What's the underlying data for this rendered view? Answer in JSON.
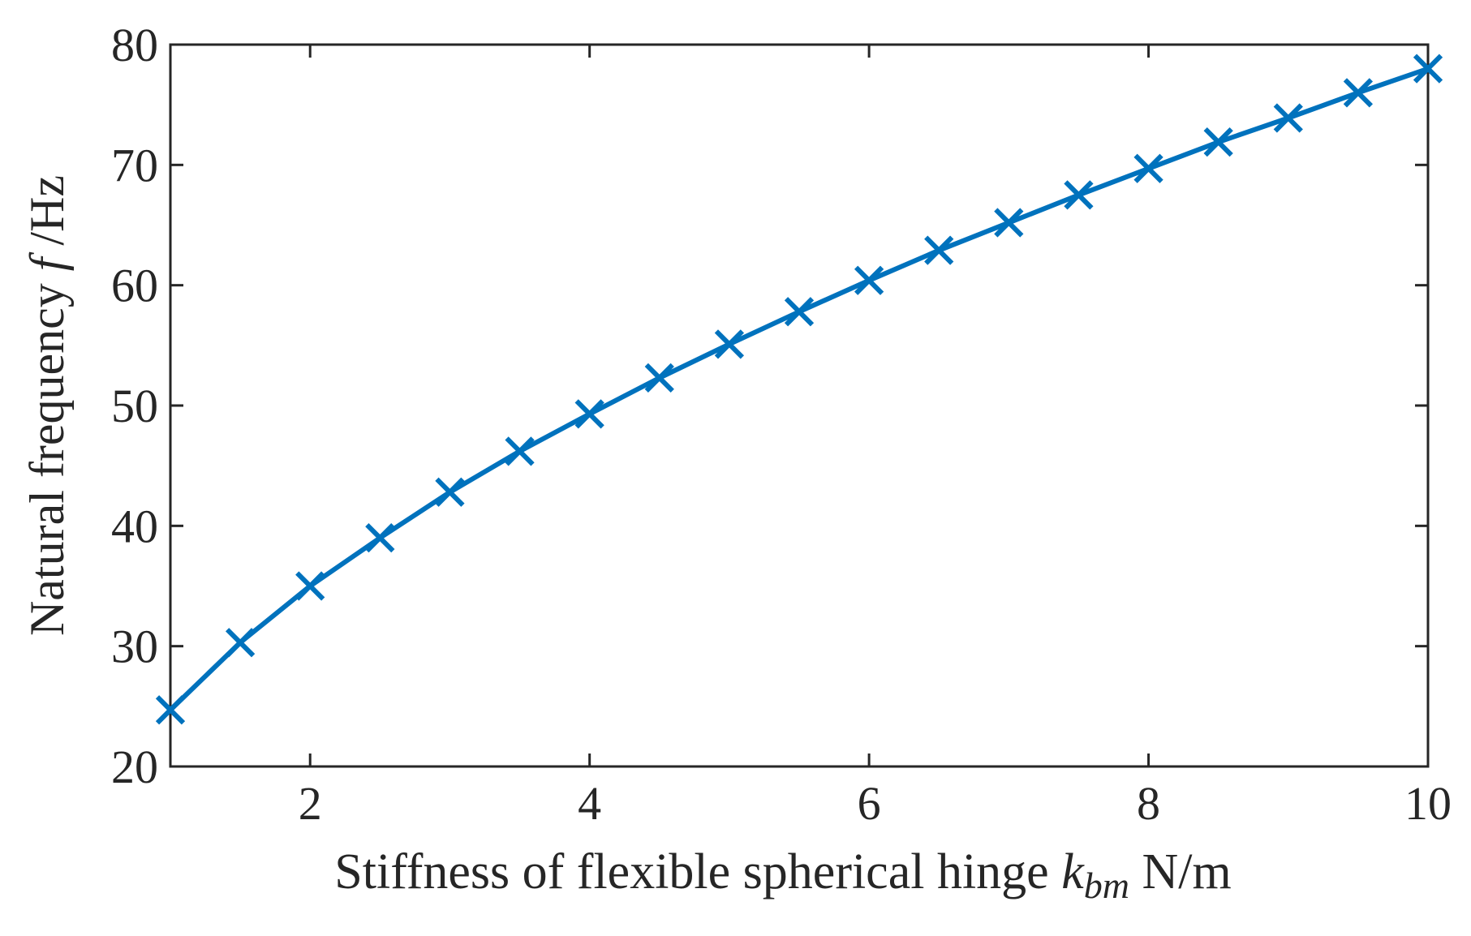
{
  "chart_data": {
    "type": "line",
    "x": [
      1,
      1.5,
      2,
      2.5,
      3,
      3.5,
      4,
      4.5,
      5,
      5.5,
      6,
      6.5,
      7,
      7.5,
      8,
      8.5,
      9,
      9.5,
      10
    ],
    "series": [
      {
        "values": [
          24.7,
          30.3,
          35.0,
          39.0,
          42.8,
          46.2,
          49.3,
          52.3,
          55.1,
          57.8,
          60.4,
          62.9,
          65.2,
          67.5,
          69.7,
          71.9,
          73.9,
          76.0,
          78.0
        ],
        "color": "#0072BD",
        "marker": "x"
      }
    ],
    "xlabel": {
      "prefix": "Stiffness of flexible spherical hinge ",
      "symbol": "k",
      "subscript": "bm",
      "suffix": " N/m"
    },
    "ylabel": {
      "prefix": "Natural frequency ",
      "symbol": "f",
      "suffix": " /Hz"
    },
    "xlim": [
      1,
      10
    ],
    "ylim": [
      20,
      80
    ],
    "xticks": [
      2,
      4,
      6,
      8,
      10
    ],
    "yticks": [
      20,
      30,
      40,
      50,
      60,
      70,
      80
    ],
    "xtick_labels": [
      "2",
      "4",
      "6",
      "8",
      "10"
    ],
    "ytick_labels": [
      "20",
      "30",
      "40",
      "50",
      "60",
      "70",
      "80"
    ],
    "grid": false,
    "box": true
  }
}
